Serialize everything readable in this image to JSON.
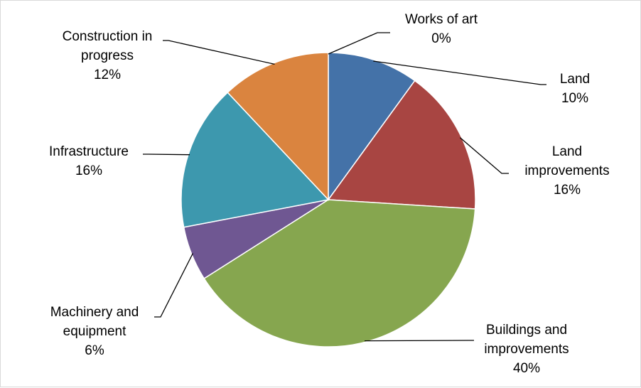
{
  "chart_data": {
    "type": "pie",
    "title": "",
    "categories": [
      "Works of art",
      "Land",
      "Land improvements",
      "Buildings and improvements",
      "Machinery and equipment",
      "Infrastructure",
      "Construction in progress"
    ],
    "values": [
      0,
      10,
      16,
      40,
      6,
      16,
      12
    ],
    "value_labels": [
      "0%",
      "10%",
      "16%",
      "40%",
      "6%",
      "16%",
      "12%"
    ],
    "colors": [
      "#4472A8",
      "#4472A8",
      "#A84542",
      "#86A64F",
      "#6F5792",
      "#3D98AE",
      "#DA843F"
    ],
    "label_lines": [
      [
        "Works of art",
        "0%"
      ],
      [
        "Land",
        "10%"
      ],
      [
        "Land",
        "improvements",
        "16%"
      ],
      [
        "Buildings and",
        "improvements",
        "40%"
      ],
      [
        "Machinery and",
        "equipment",
        "6%"
      ],
      [
        "Infrastructure",
        "16%"
      ],
      [
        "Construction in",
        "progress",
        "12%"
      ]
    ],
    "legend": "none",
    "start_angle": "12 o'clock",
    "direction": "clockwise"
  }
}
